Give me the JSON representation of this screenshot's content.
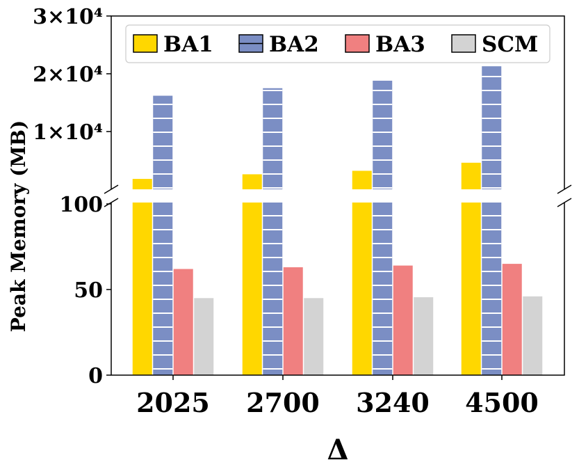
{
  "chart_data": {
    "type": "bar",
    "title": "",
    "xlabel": "Δ",
    "ylabel": "Peak Memory (MB)",
    "categories": [
      "2025",
      "2700",
      "3240",
      "4500"
    ],
    "series": [
      {
        "name": "BA1",
        "color": "#FFD700",
        "hatch": "none",
        "values": [
          1800,
          2600,
          3200,
          4600
        ]
      },
      {
        "name": "BA2",
        "color": "#7B8EC4",
        "hatch": "horizontal",
        "values": [
          16200,
          17500,
          18800,
          21300
        ]
      },
      {
        "name": "BA3",
        "color": "#F08080",
        "hatch": "none",
        "values": [
          62,
          63,
          64,
          65
        ]
      },
      {
        "name": "SCM",
        "color": "#D3D3D3",
        "hatch": "none",
        "values": [
          45,
          45,
          45.5,
          46
        ]
      }
    ],
    "axis_break": true,
    "lower_panel": {
      "ylim": [
        0,
        100
      ],
      "ticks": [
        0,
        50,
        100
      ],
      "tick_labels": [
        "0",
        "50",
        "100"
      ]
    },
    "upper_panel": {
      "ylim": [
        0,
        30000
      ],
      "ticks": [
        10000,
        20000,
        30000
      ],
      "tick_labels": [
        "1×10⁴",
        "2×10⁴",
        "3×10⁴"
      ]
    },
    "legend": {
      "placement": "top",
      "columns": 4
    },
    "grid": false
  }
}
